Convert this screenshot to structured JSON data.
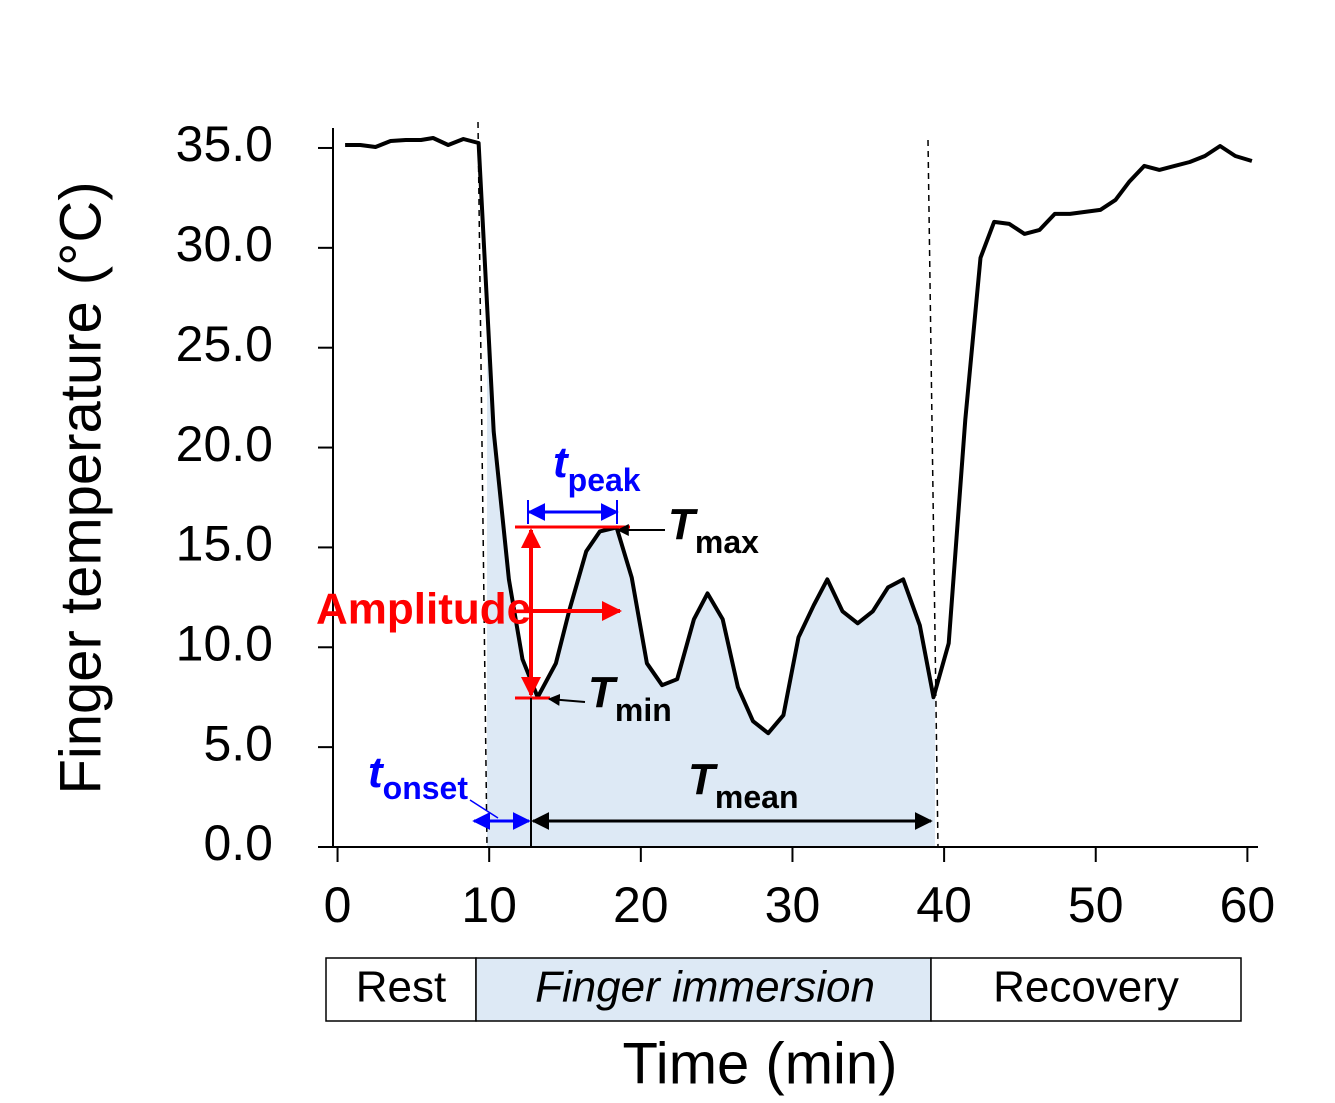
{
  "chart_data": {
    "type": "line",
    "x_label": "Time (min)",
    "y_label": "Finger temperature (°C)",
    "color": "#000000",
    "x": [
      0.5,
      1.5,
      2.5,
      3.5,
      4.5,
      5.5,
      6.3,
      7.3,
      8.3,
      9.3,
      10.3,
      11.3,
      12.2,
      13.2,
      14.4,
      15.3,
      16.4,
      17.3,
      18.4,
      19.4,
      20.4,
      21.4,
      22.4,
      23.5,
      24.4,
      25.4,
      26.4,
      27.4,
      28.4,
      29.4,
      30.4,
      31.4,
      32.3,
      33.3,
      34.3,
      35.3,
      36.3,
      37.3,
      38.4,
      39.3,
      40.3,
      41.4,
      42.4,
      43.3,
      44.3,
      45.3,
      46.3,
      47.3,
      48.3,
      49.3,
      50.3,
      51.3,
      52.2,
      53.2,
      54.2,
      55.2,
      56.2,
      57.2,
      58.2,
      59.2,
      60.3
    ],
    "values": [
      35.15,
      35.15,
      35.05,
      35.35,
      35.4,
      35.4,
      35.5,
      35.15,
      35.45,
      35.25,
      20.8,
      13.4,
      9.4,
      7.5,
      9.2,
      11.9,
      14.8,
      15.8,
      16.0,
      13.5,
      9.2,
      8.1,
      8.4,
      11.4,
      12.7,
      11.4,
      8.0,
      6.3,
      5.7,
      6.6,
      10.5,
      12.1,
      13.4,
      11.8,
      11.2,
      11.8,
      13.0,
      13.4,
      11.1,
      7.5,
      10.2,
      21.4,
      29.5,
      31.3,
      31.2,
      30.7,
      30.9,
      31.7,
      31.7,
      31.8,
      31.9,
      32.4,
      33.3,
      34.1,
      33.9,
      34.1,
      34.3,
      34.6,
      35.1,
      34.6,
      34.35
    ],
    "xlim": [
      -0.3,
      60.7
    ],
    "xticks": [
      0,
      10,
      20,
      30,
      40,
      50,
      60
    ],
    "ylim": [
      0,
      36
    ],
    "yticks": [
      {
        "value": 0,
        "label": "0.0"
      },
      {
        "value": 5,
        "label": "5.0"
      },
      {
        "value": 10,
        "label": "10.0"
      },
      {
        "value": 15,
        "label": "15.0"
      },
      {
        "value": 20,
        "label": "20.0"
      },
      {
        "value": 25,
        "label": "25.0"
      },
      {
        "value": 30,
        "label": "30.0"
      },
      {
        "value": 35,
        "label": "35.0"
      }
    ],
    "phases": [
      "Rest",
      "Finger immersion",
      "Recovery"
    ],
    "annotations": {
      "t_peak": {
        "symbol": "t",
        "subscript": "peak"
      },
      "t_max": {
        "symbol": "T",
        "subscript": "max"
      },
      "amplitude": "Amplitude",
      "t_min": {
        "symbol": "T",
        "subscript": "min"
      },
      "t_onset": {
        "symbol": "t",
        "subscript": "onset"
      },
      "t_mean": {
        "symbol": "T",
        "subscript": "mean"
      }
    }
  }
}
